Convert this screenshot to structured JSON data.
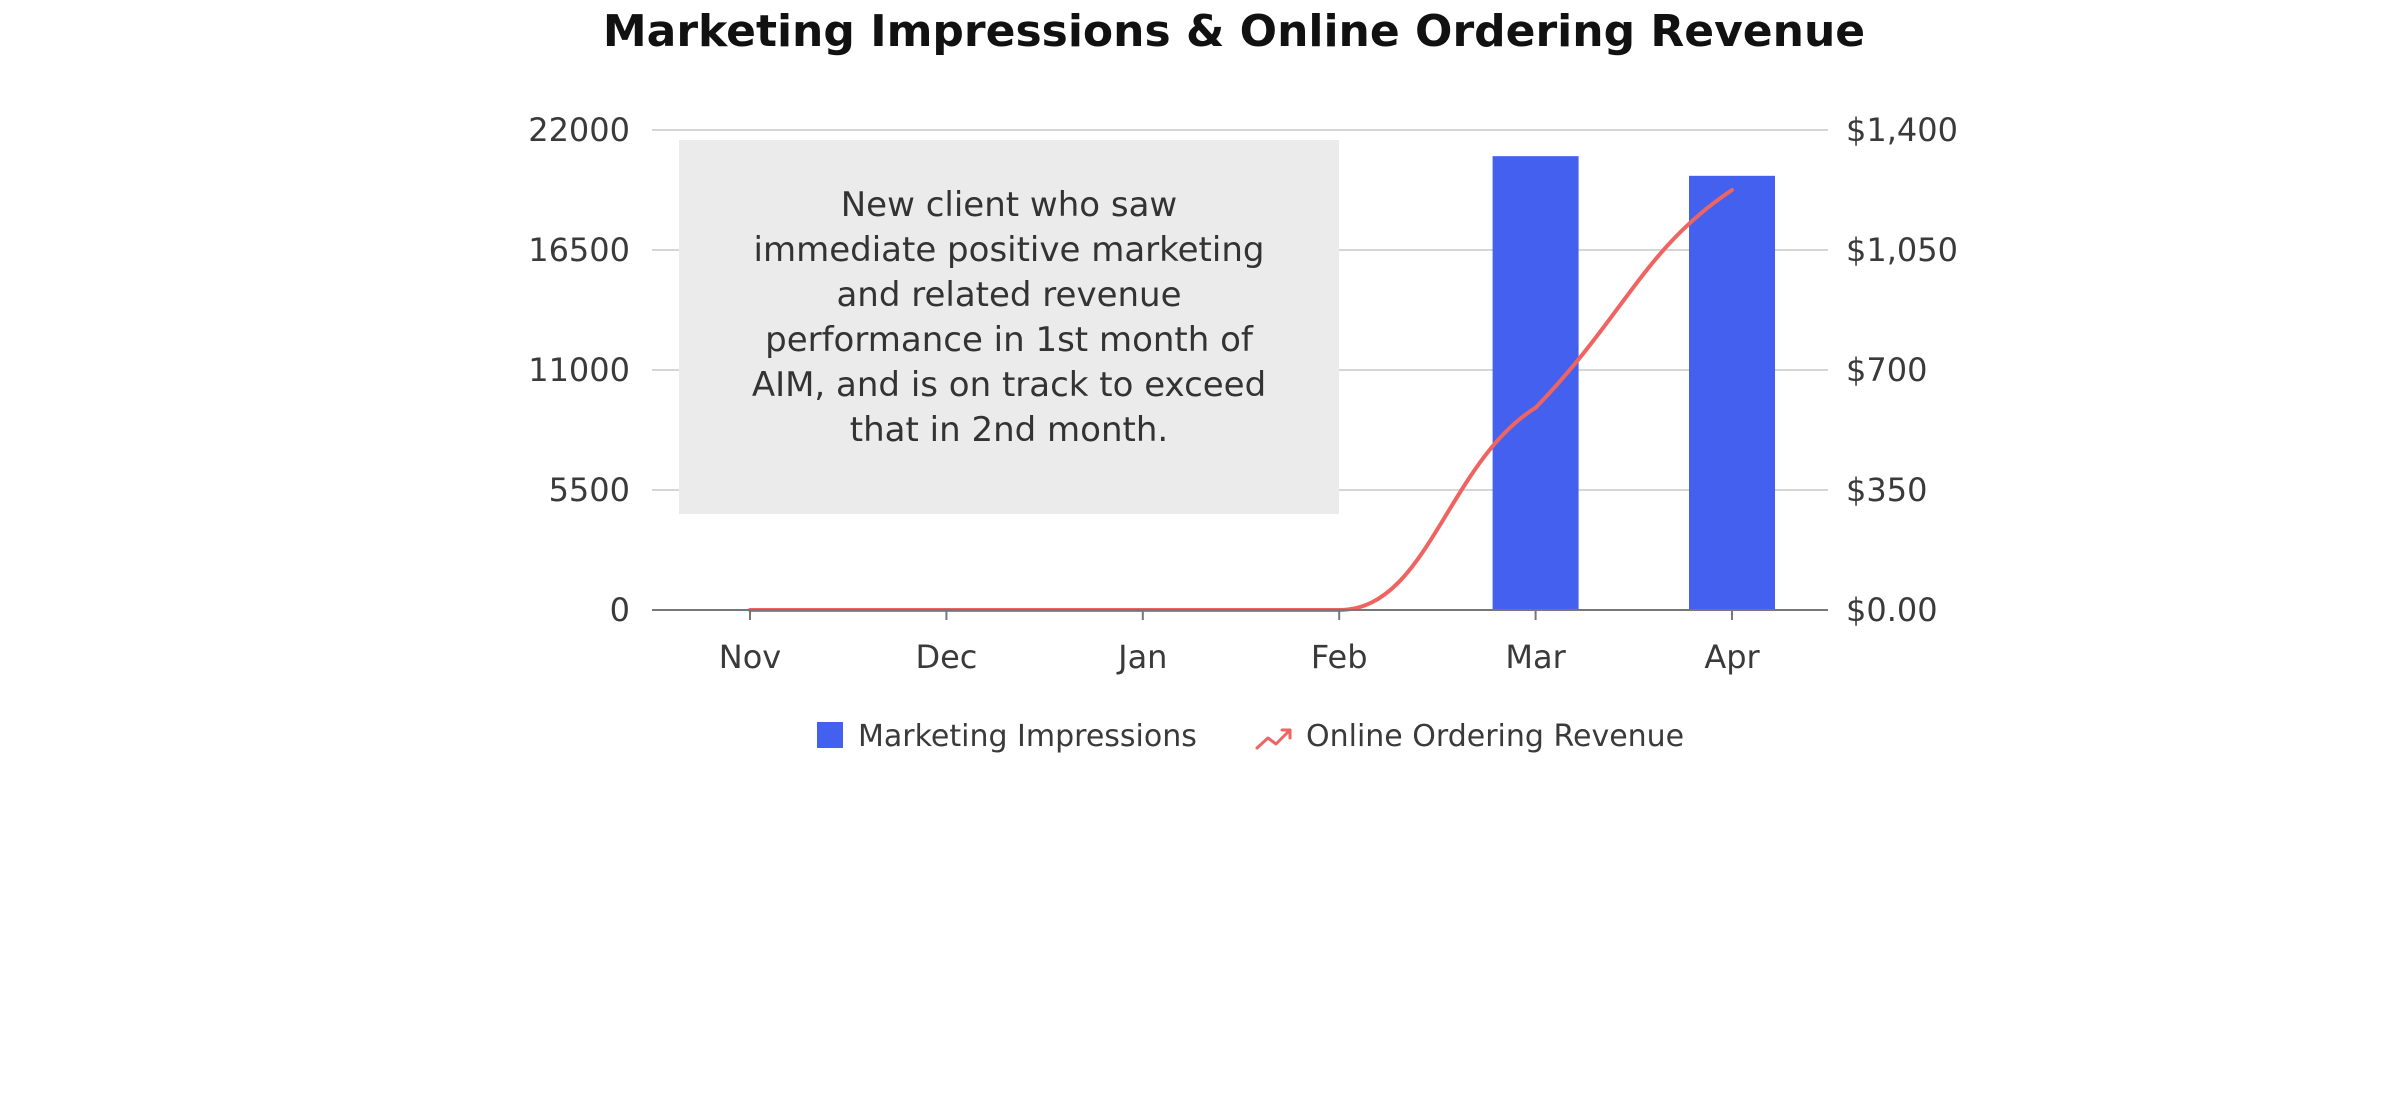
{
  "chart_data": {
    "type": "bar",
    "title": "Marketing Impressions & Online Ordering Revenue",
    "categories": [
      "Nov",
      "Dec",
      "Jan",
      "Feb",
      "Mar",
      "Apr"
    ],
    "series": [
      {
        "name": "Marketing Impressions",
        "type": "bar",
        "axis": "left",
        "color": "#4361ee",
        "values": [
          0,
          0,
          0,
          0,
          20800,
          19900
        ]
      },
      {
        "name": "Online Ordering Revenue",
        "type": "line",
        "axis": "right",
        "color": "#ef6461",
        "values": [
          0,
          0,
          0,
          0,
          590,
          1225
        ]
      }
    ],
    "y_left": {
      "range": [
        0,
        22000
      ],
      "ticks": [
        "0",
        "5500",
        "11000",
        "16500",
        "22000"
      ]
    },
    "y_right": {
      "range": [
        0,
        1400
      ],
      "ticks": [
        "$0.00",
        "$350",
        "$700",
        "$1,050",
        "$1,400"
      ]
    },
    "grid": true,
    "legend_position": "bottom",
    "annotation": {
      "lines": [
        "New client who saw",
        "immediate positive marketing",
        "and related revenue",
        "performance in 1st month of",
        "AIM, and is on track to exceed",
        "that in 2nd month."
      ],
      "background": "#ebebeb"
    }
  }
}
